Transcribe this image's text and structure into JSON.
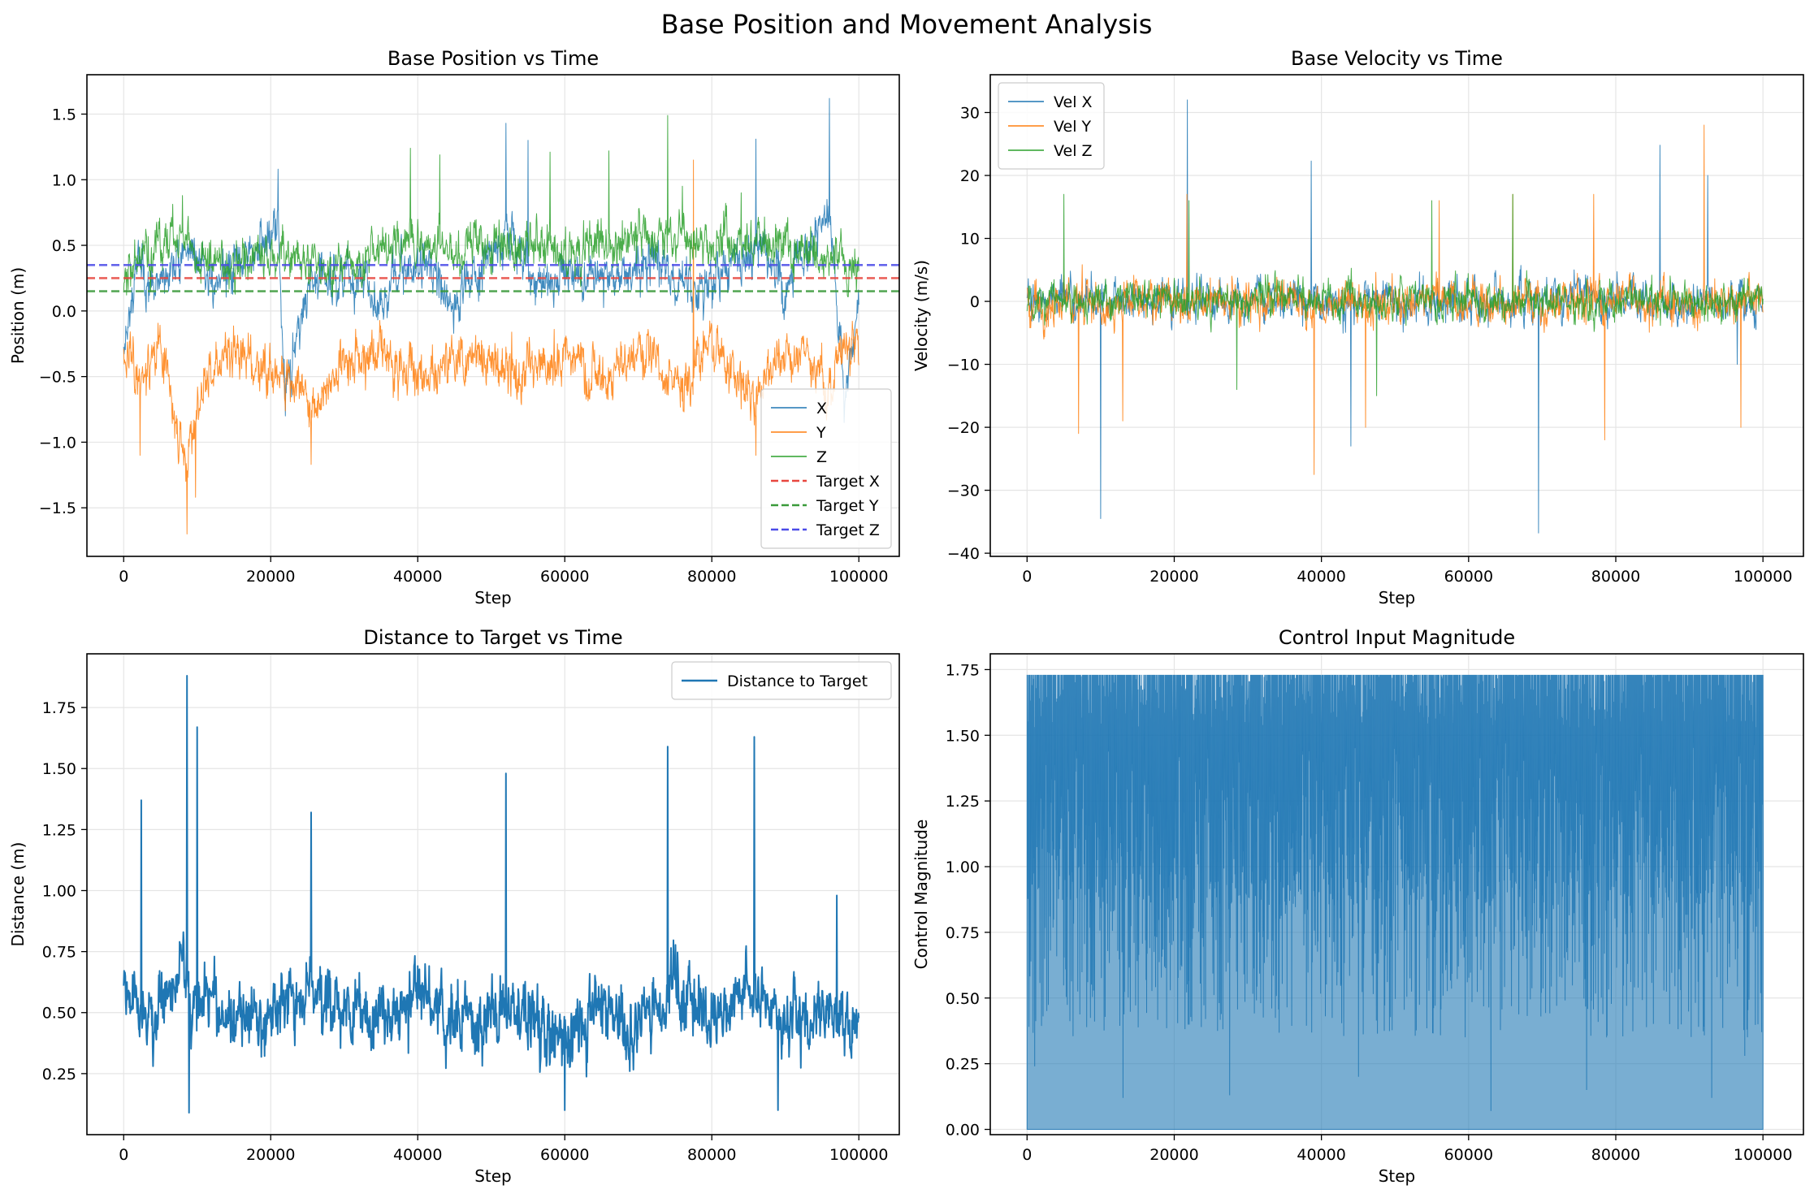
{
  "figure": {
    "title": "Base Position and Movement Analysis"
  },
  "colors": {
    "blue": "#1f77b4",
    "orange": "#ff7f0e",
    "green": "#2ca02c",
    "target_red": "#e8473f",
    "target_green": "#3a9a3a",
    "target_blue": "#4b4be8",
    "grid": "#e5e5e5",
    "axis": "#000000"
  },
  "chart_data": [
    {
      "type": "line",
      "title": "Base Position vs Time",
      "xlabel": "Step",
      "ylabel": "Position (m)",
      "xlim": [
        -5000,
        105500
      ],
      "ylim": [
        -1.87,
        1.8
      ],
      "xticks": [
        0,
        20000,
        40000,
        60000,
        80000,
        100000
      ],
      "xtick_labels": [
        "0",
        "20000",
        "40000",
        "60000",
        "80000",
        "100000"
      ],
      "yticks": [
        -1.5,
        -1.0,
        -0.5,
        0.0,
        0.5,
        1.0,
        1.5
      ],
      "ytick_labels": [
        "−1.5",
        "−1.0",
        "−0.5",
        "0.0",
        "0.5",
        "1.0",
        "1.5"
      ],
      "grid": true,
      "legend_position": "lower-right",
      "series": [
        {
          "name": "X",
          "color": "#1f77b4",
          "linewidth": 1,
          "opacity": 0.85,
          "noise": 0.18,
          "seed": 11,
          "points": [
            [
              0,
              -0.2
            ],
            [
              2000,
              0.35
            ],
            [
              4000,
              0.1
            ],
            [
              6000,
              0.3
            ],
            [
              9000,
              0.5
            ],
            [
              12000,
              0.2
            ],
            [
              16000,
              0.35
            ],
            [
              21000,
              0.6
            ],
            [
              22000,
              -0.6
            ],
            [
              25000,
              0.2
            ],
            [
              30000,
              0.3
            ],
            [
              35000,
              0.1
            ],
            [
              40000,
              0.4
            ],
            [
              45000,
              0.05
            ],
            [
              52000,
              0.6
            ],
            [
              56000,
              0.2
            ],
            [
              60000,
              0.3
            ],
            [
              66000,
              0.2
            ],
            [
              72000,
              0.4
            ],
            [
              78000,
              0.1
            ],
            [
              86000,
              0.5
            ],
            [
              90000,
              0.2
            ],
            [
              96000,
              0.8
            ],
            [
              98000,
              -0.7
            ],
            [
              100000,
              0.1
            ]
          ],
          "spikes": [
            [
              21000,
              1.08
            ],
            [
              22000,
              -0.8
            ],
            [
              52000,
              1.43
            ],
            [
              55000,
              1.3
            ],
            [
              86000,
              1.31
            ],
            [
              96000,
              1.62
            ],
            [
              98000,
              -0.85
            ]
          ]
        },
        {
          "name": "Y",
          "color": "#ff7f0e",
          "linewidth": 1,
          "opacity": 0.85,
          "noise": 0.2,
          "seed": 23,
          "points": [
            [
              0,
              -0.3
            ],
            [
              2000,
              -0.5
            ],
            [
              5000,
              -0.3
            ],
            [
              8500,
              -1.2
            ],
            [
              10000,
              -0.7
            ],
            [
              14000,
              -0.3
            ],
            [
              20000,
              -0.4
            ],
            [
              25500,
              -0.7
            ],
            [
              30000,
              -0.4
            ],
            [
              35000,
              -0.3
            ],
            [
              40000,
              -0.5
            ],
            [
              45000,
              -0.4
            ],
            [
              50000,
              -0.3
            ],
            [
              55000,
              -0.5
            ],
            [
              60000,
              -0.3
            ],
            [
              65000,
              -0.5
            ],
            [
              70000,
              -0.3
            ],
            [
              76000,
              -0.6
            ],
            [
              80000,
              -0.3
            ],
            [
              86000,
              -0.7
            ],
            [
              90000,
              -0.3
            ],
            [
              96000,
              -0.5
            ],
            [
              100000,
              -0.2
            ]
          ],
          "spikes": [
            [
              8600,
              -1.7
            ],
            [
              9800,
              -1.42
            ],
            [
              25500,
              -1.17
            ],
            [
              2200,
              -1.1
            ],
            [
              86000,
              -1.1
            ],
            [
              77500,
              1.15
            ]
          ]
        },
        {
          "name": "Z",
          "color": "#2ca02c",
          "linewidth": 1,
          "opacity": 0.85,
          "noise": 0.18,
          "seed": 37,
          "points": [
            [
              0,
              0.3
            ],
            [
              4000,
              0.45
            ],
            [
              8000,
              0.6
            ],
            [
              12000,
              0.35
            ],
            [
              20000,
              0.45
            ],
            [
              30000,
              0.3
            ],
            [
              38000,
              0.55
            ],
            [
              44000,
              0.45
            ],
            [
              50000,
              0.5
            ],
            [
              56000,
              0.55
            ],
            [
              62000,
              0.4
            ],
            [
              68000,
              0.55
            ],
            [
              74000,
              0.6
            ],
            [
              80000,
              0.5
            ],
            [
              86000,
              0.55
            ],
            [
              92000,
              0.45
            ],
            [
              100000,
              0.35
            ]
          ],
          "spikes": [
            [
              8000,
              0.88
            ],
            [
              39000,
              1.24
            ],
            [
              43000,
              1.19
            ],
            [
              58000,
              1.21
            ],
            [
              66000,
              1.22
            ],
            [
              74000,
              1.49
            ],
            [
              76000,
              0.95
            ],
            [
              84000,
              0.9
            ]
          ]
        },
        {
          "name": "Target X",
          "color": "#e8473f",
          "dashed": true,
          "value": 0.25
        },
        {
          "name": "Target Y",
          "color": "#3a9a3a",
          "dashed": true,
          "value": 0.15
        },
        {
          "name": "Target Z",
          "color": "#4b4be8",
          "dashed": true,
          "value": 0.35
        }
      ]
    },
    {
      "type": "line",
      "title": "Base Velocity vs Time",
      "xlabel": "Step",
      "ylabel": "Velocity (m/s)",
      "xlim": [
        -5000,
        105500
      ],
      "ylim": [
        -40.5,
        36
      ],
      "xticks": [
        0,
        20000,
        40000,
        60000,
        80000,
        100000
      ],
      "xtick_labels": [
        "0",
        "20000",
        "40000",
        "60000",
        "80000",
        "100000"
      ],
      "yticks": [
        -40,
        -30,
        -20,
        -10,
        0,
        10,
        20,
        30
      ],
      "ytick_labels": [
        "−40",
        "−30",
        "−20",
        "−10",
        "0",
        "10",
        "20",
        "30"
      ],
      "grid": true,
      "legend_position": "upper-left",
      "series": [
        {
          "name": "Vel X",
          "color": "#1f77b4",
          "linewidth": 1,
          "opacity": 0.85,
          "noise": 3.2,
          "seed": 51,
          "points": [
            [
              0,
              0
            ],
            [
              100000,
              0
            ]
          ],
          "spikes": [
            [
              21800,
              32
            ],
            [
              38600,
              22.3
            ],
            [
              86000,
              24.8
            ],
            [
              92500,
              20
            ],
            [
              10000,
              -34.5
            ],
            [
              69500,
              -36.8
            ],
            [
              44000,
              -23
            ],
            [
              96500,
              -10
            ]
          ]
        },
        {
          "name": "Vel Y",
          "color": "#ff7f0e",
          "linewidth": 1,
          "opacity": 0.85,
          "noise": 3.4,
          "seed": 63,
          "points": [
            [
              0,
              0
            ],
            [
              100000,
              0
            ]
          ],
          "spikes": [
            [
              92000,
              28
            ],
            [
              21700,
              17
            ],
            [
              56000,
              16
            ],
            [
              66000,
              17
            ],
            [
              77000,
              17
            ],
            [
              39000,
              -27.5
            ],
            [
              7000,
              -21
            ],
            [
              13000,
              -19
            ],
            [
              46000,
              -20
            ],
            [
              78500,
              -22
            ],
            [
              97000,
              -20
            ]
          ]
        },
        {
          "name": "Vel Z",
          "color": "#2ca02c",
          "linewidth": 1,
          "opacity": 0.85,
          "noise": 3.0,
          "seed": 75,
          "points": [
            [
              0,
              0
            ],
            [
              100000,
              0
            ]
          ],
          "spikes": [
            [
              5000,
              17
            ],
            [
              22000,
              16
            ],
            [
              55000,
              16
            ],
            [
              66000,
              17
            ],
            [
              47500,
              -15
            ],
            [
              28500,
              -14
            ]
          ]
        }
      ]
    },
    {
      "type": "line",
      "title": "Distance to Target vs Time",
      "xlabel": "Step",
      "ylabel": "Distance (m)",
      "xlim": [
        -5000,
        105500
      ],
      "ylim": [
        0.0,
        1.97
      ],
      "xticks": [
        0,
        20000,
        40000,
        60000,
        80000,
        100000
      ],
      "xtick_labels": [
        "0",
        "20000",
        "40000",
        "60000",
        "80000",
        "100000"
      ],
      "yticks": [
        0.25,
        0.5,
        0.75,
        1.0,
        1.25,
        1.5,
        1.75
      ],
      "ytick_labels": [
        "0.25",
        "0.50",
        "0.75",
        "1.00",
        "1.25",
        "1.50",
        "1.75"
      ],
      "grid": true,
      "legend_position": "upper-right",
      "series": [
        {
          "name": "Distance to Target",
          "color": "#1f77b4",
          "linewidth": 2,
          "opacity": 1,
          "noise": 0.14,
          "seed": 89,
          "points": [
            [
              0,
              0.6
            ],
            [
              2000,
              0.5
            ],
            [
              4000,
              0.45
            ],
            [
              8000,
              0.7
            ],
            [
              10000,
              0.55
            ],
            [
              15000,
              0.45
            ],
            [
              20000,
              0.5
            ],
            [
              25000,
              0.6
            ],
            [
              30000,
              0.5
            ],
            [
              35000,
              0.45
            ],
            [
              40000,
              0.55
            ],
            [
              45000,
              0.45
            ],
            [
              50000,
              0.5
            ],
            [
              55000,
              0.5
            ],
            [
              60000,
              0.4
            ],
            [
              65000,
              0.5
            ],
            [
              70000,
              0.45
            ],
            [
              74000,
              0.6
            ],
            [
              80000,
              0.5
            ],
            [
              86000,
              0.6
            ],
            [
              90000,
              0.45
            ],
            [
              95000,
              0.45
            ],
            [
              100000,
              0.45
            ]
          ],
          "spikes": [
            [
              8600,
              1.88
            ],
            [
              10000,
              1.67
            ],
            [
              2400,
              1.37
            ],
            [
              25500,
              1.32
            ],
            [
              52000,
              1.48
            ],
            [
              74000,
              1.59
            ],
            [
              85800,
              1.63
            ],
            [
              97000,
              0.98
            ],
            [
              8900,
              0.09
            ],
            [
              60000,
              0.1
            ],
            [
              89000,
              0.1
            ]
          ]
        }
      ]
    },
    {
      "type": "area",
      "title": "Control Input Magnitude",
      "xlabel": "",
      "ylabel": "Control Magnitude",
      "xlim": [
        -5000,
        105500
      ],
      "ylim": [
        -0.02,
        1.81
      ],
      "xticks": [
        0,
        20000,
        40000,
        60000,
        80000,
        100000
      ],
      "xtick_labels": [
        "0",
        "20000",
        "40000",
        "60000",
        "80000",
        "100000"
      ],
      "yticks": [
        0.0,
        0.25,
        0.5,
        0.75,
        1.0,
        1.25,
        1.5,
        1.75
      ],
      "ytick_labels": [
        "0.00",
        "0.25",
        "0.50",
        "0.75",
        "1.00",
        "1.25",
        "1.50",
        "1.75"
      ],
      "grid": true,
      "series": [
        {
          "color": "#1f77b4",
          "opacity": 0.7,
          "seed": 101,
          "upper": 1.73,
          "band_low": 0.85,
          "band_high": 1.5,
          "spikes": [
            [
              1000,
              0.24
            ],
            [
              13000,
              0.12
            ],
            [
              27500,
              0.13
            ],
            [
              63000,
              0.07
            ],
            [
              93000,
              0.12
            ],
            [
              97500,
              0.28
            ],
            [
              45000,
              0.2
            ],
            [
              76000,
              0.15
            ]
          ]
        }
      ]
    }
  ],
  "x_axis_caption": "Step"
}
